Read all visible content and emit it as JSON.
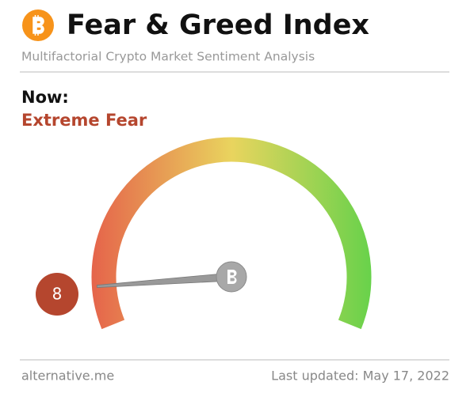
{
  "chart_data": {
    "type": "gauge",
    "title": "Fear & Greed Index",
    "subtitle": "Multifactorial Crypto Market Sentiment Analysis",
    "now_label": "Now:",
    "classification": "Extreme Fear",
    "value": 8,
    "ylim": [
      0,
      100
    ],
    "colors": [
      "#e5604a",
      "#e9d45e",
      "#63d24a"
    ],
    "value_color": "#b5462e",
    "source": "alternative.me",
    "updated": "Last updated: May 17, 2022"
  }
}
